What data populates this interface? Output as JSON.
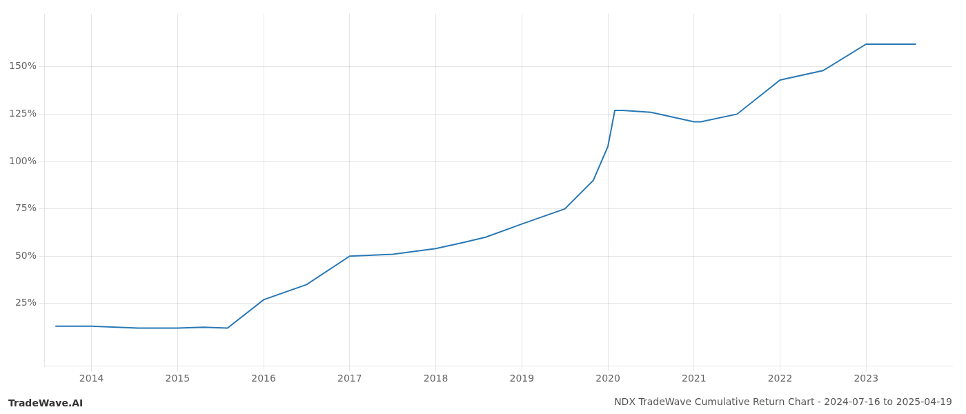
{
  "chart_data": {
    "type": "line",
    "title": "NDX TradeWave Cumulative Return Chart - 2024-07-16 to 2025-04-19",
    "annotations": [
      "TradeWave.AI"
    ],
    "x": [
      2013.58,
      2014.0,
      2014.54,
      2015.0,
      2015.3,
      2015.58,
      2016.0,
      2016.5,
      2017.0,
      2017.5,
      2018.0,
      2018.3,
      2018.58,
      2019.0,
      2019.5,
      2019.83,
      2020.0,
      2020.08,
      2020.17,
      2020.5,
      2021.0,
      2021.08,
      2021.5,
      2022.0,
      2022.5,
      2023.0,
      2023.58
    ],
    "values": [
      13,
      13,
      12,
      12,
      12.5,
      12,
      27,
      35,
      50,
      51,
      54,
      57,
      60,
      67,
      75,
      90,
      108,
      127,
      127,
      126,
      121,
      121,
      125,
      143,
      148,
      162,
      162
    ],
    "color": "#2878b5",
    "xlim": [
      2013.45,
      2024.0
    ],
    "xticks": [
      2014,
      2015,
      2016,
      2017,
      2018,
      2019,
      2020,
      2021,
      2022,
      2023
    ],
    "ylim": [
      -8,
      178
    ],
    "yticks": [
      {
        "value": 25,
        "label": "25%"
      },
      {
        "value": 50,
        "label": "50%"
      },
      {
        "value": 75,
        "label": "75%"
      },
      {
        "value": 100,
        "label": "100%"
      },
      {
        "value": 125,
        "label": "125%"
      },
      {
        "value": 150,
        "label": "150%"
      }
    ],
    "grid": true
  }
}
